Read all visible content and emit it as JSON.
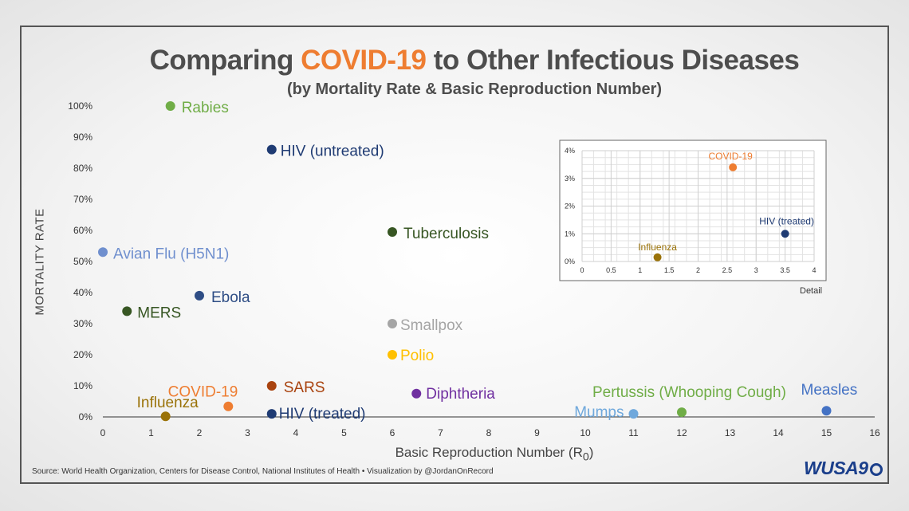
{
  "title": {
    "prefix": "Comparing ",
    "accent": "COVID-19",
    "suffix": " to Other Infectious Diseases",
    "accent_color": "#ee7d31"
  },
  "subtitle": "(by Mortality Rate & Basic Reproduction Number)",
  "source": "Source: World Health Organization, Centers for Disease Control, National Institutes of Health • Visualization by @JordanOnRecord",
  "logo": "WUSA9",
  "chart_data": [
    {
      "type": "scatter",
      "xlabel": "Basic Reproduction Number (R",
      "xlabel_sub": "0",
      "xlabel_end": ")",
      "ylabel": "MORTALITY RATE",
      "xlim": [
        0,
        16
      ],
      "ylim": [
        0,
        100
      ],
      "x_ticks": [
        0,
        1,
        2,
        3,
        4,
        5,
        6,
        7,
        8,
        9,
        10,
        11,
        12,
        13,
        14,
        15,
        16
      ],
      "y_ticks": [
        0,
        10,
        20,
        30,
        40,
        50,
        60,
        70,
        80,
        90,
        100
      ],
      "y_tick_labels": [
        "0%",
        "10%",
        "20%",
        "30%",
        "40%",
        "50%",
        "60%",
        "70%",
        "80%",
        "90%",
        "100%"
      ],
      "grid": false,
      "points": [
        {
          "label": "Rabies",
          "x": 1.4,
          "y": 100,
          "color": "#70ad47"
        },
        {
          "label": "HIV (untreated)",
          "x": 3.5,
          "y": 86,
          "color": "#1f3b73"
        },
        {
          "label": "Tuberculosis",
          "x": 6,
          "y": 59.5,
          "color": "#375623"
        },
        {
          "label": "Avian Flu (H5N1)",
          "x": 0,
          "y": 53,
          "color": "#6f8fce"
        },
        {
          "label": "Ebola",
          "x": 2,
          "y": 39,
          "color": "#2e4d85"
        },
        {
          "label": "MERS",
          "x": 0.5,
          "y": 34,
          "color": "#375623"
        },
        {
          "label": "Smallpox",
          "x": 6,
          "y": 30,
          "color": "#a5a5a5"
        },
        {
          "label": "Polio",
          "x": 6,
          "y": 20,
          "color": "#ffc000"
        },
        {
          "label": "SARS",
          "x": 3.5,
          "y": 10,
          "color": "#a9430f"
        },
        {
          "label": "COVID-19",
          "x": 2.6,
          "y": 3.4,
          "color": "#ee7d31"
        },
        {
          "label": "Influenza",
          "x": 1.3,
          "y": 0.2,
          "color": "#9a7208"
        },
        {
          "label": "HIV (treated)",
          "x": 3.5,
          "y": 1,
          "color": "#1f3b73"
        },
        {
          "label": "Diphtheria",
          "x": 6.5,
          "y": 7.5,
          "color": "#7030a0"
        },
        {
          "label": "Mumps",
          "x": 11,
          "y": 1,
          "color": "#6fa8dc"
        },
        {
          "label": "Pertussis (Whooping Cough)",
          "x": 12,
          "y": 1.5,
          "color": "#70ad47"
        },
        {
          "label": "Measles",
          "x": 15,
          "y": 2,
          "color": "#4472c4"
        }
      ]
    },
    {
      "type": "scatter",
      "caption": "Detail",
      "xlim": [
        0,
        4
      ],
      "ylim": [
        0,
        4
      ],
      "x_ticks": [
        0,
        0.5,
        1,
        1.5,
        2,
        2.5,
        3,
        3.5,
        4
      ],
      "x_tick_labels": [
        "0",
        "0.5",
        "1",
        "1.5",
        "2",
        "2.5",
        "3",
        "3.5",
        "4"
      ],
      "y_ticks": [
        0,
        1,
        2,
        3,
        4
      ],
      "y_tick_labels": [
        "0%",
        "1%",
        "2%",
        "3%",
        "4%"
      ],
      "grid": true,
      "points": [
        {
          "label": "COVID-19",
          "x": 2.6,
          "y": 3.4,
          "color": "#ee7d31"
        },
        {
          "label": "HIV (treated)",
          "x": 3.5,
          "y": 1,
          "color": "#1f3b73"
        },
        {
          "label": "Influenza",
          "x": 1.3,
          "y": 0.15,
          "color": "#9a7208"
        }
      ]
    }
  ]
}
